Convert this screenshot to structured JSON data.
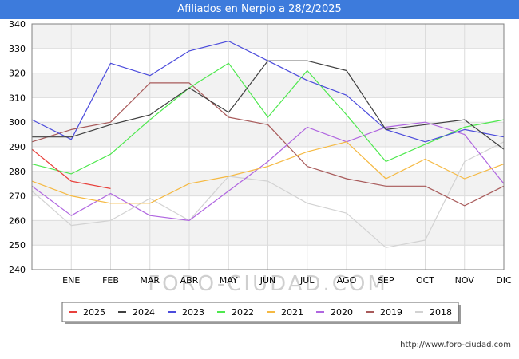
{
  "header": {
    "title": "Afiliados en Nerpio a 28/2/2025"
  },
  "footer": {
    "url": "http://www.foro-ciudad.com"
  },
  "watermark": "FORO-CIUDAD.COM",
  "chart_data": {
    "type": "line",
    "title": "Afiliados en Nerpio a 28/2/2025",
    "xlabel": "",
    "ylabel": "",
    "categories": [
      "",
      "ENE",
      "FEB",
      "MAR",
      "ABR",
      "MAY",
      "JUN",
      "JUL",
      "AGO",
      "SEP",
      "OCT",
      "NOV",
      "DIC"
    ],
    "ylim": [
      240,
      340
    ],
    "yticks": [
      240,
      250,
      260,
      270,
      280,
      290,
      300,
      310,
      320,
      330,
      340
    ],
    "grid": true,
    "legend_position": "bottom",
    "series": [
      {
        "name": "2025",
        "color": "#e8413c",
        "values": [
          289,
          276,
          273,
          null,
          null,
          null,
          null,
          null,
          null,
          null,
          null,
          null,
          null
        ]
      },
      {
        "name": "2024",
        "color": "#404040",
        "values": [
          294,
          294,
          299,
          303,
          314,
          304,
          325,
          325,
          321,
          297,
          299,
          301,
          289
        ]
      },
      {
        "name": "2023",
        "color": "#4b4bdc",
        "values": [
          301,
          293,
          324,
          319,
          329,
          333,
          325,
          317,
          311,
          297,
          292,
          297,
          294
        ]
      },
      {
        "name": "2022",
        "color": "#4ee84e",
        "values": [
          283,
          279,
          287,
          301,
          314,
          324,
          302,
          321,
          303,
          284,
          291,
          298,
          301
        ]
      },
      {
        "name": "2021",
        "color": "#f5b942",
        "values": [
          276,
          270,
          267,
          267,
          275,
          278,
          282,
          288,
          292,
          277,
          285,
          277,
          283
        ]
      },
      {
        "name": "2020",
        "color": "#b066e0",
        "values": [
          274,
          262,
          271,
          262,
          260,
          272,
          284,
          298,
          292,
          298,
          300,
          295,
          275
        ]
      },
      {
        "name": "2019",
        "color": "#a85a5a",
        "values": [
          292,
          297,
          300,
          316,
          316,
          302,
          299,
          282,
          277,
          274,
          274,
          266,
          274
        ]
      },
      {
        "name": "2018",
        "color": "#d2d2d2",
        "values": [
          272,
          258,
          260,
          269,
          260,
          278,
          276,
          267,
          263,
          249,
          252,
          284,
          292
        ]
      }
    ]
  }
}
